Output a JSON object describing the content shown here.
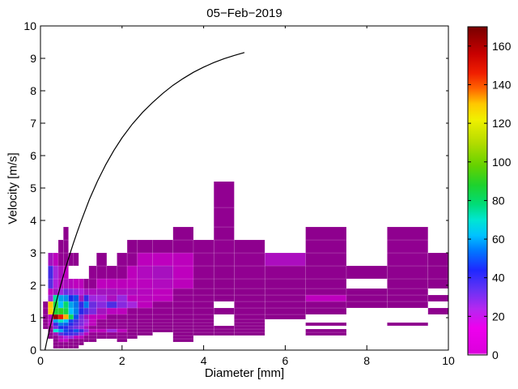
{
  "chart_data": {
    "type": "heatmap",
    "title": "05−Feb−2019",
    "xlabel": "Diameter [mm]",
    "ylabel": "Velocity [m/s]",
    "xlim": [
      0,
      10
    ],
    "ylim": [
      0,
      10
    ],
    "x_tick_values": [
      0,
      2,
      4,
      6,
      8,
      10
    ],
    "x_tick_labels": [
      "0",
      "2",
      "4",
      "6",
      "8",
      "10"
    ],
    "y_tick_values": [
      0,
      1,
      2,
      3,
      4,
      5,
      6,
      7,
      8,
      9,
      10
    ],
    "y_tick_labels": [
      "0",
      "1",
      "2",
      "3",
      "4",
      "5",
      "6",
      "7",
      "8",
      "9",
      "10"
    ],
    "grid": false,
    "background": "#ffffff",
    "diameter_bin_edges_mm": [
      0.062,
      0.187,
      0.312,
      0.437,
      0.562,
      0.687,
      0.812,
      0.937,
      1.062,
      1.187,
      1.375,
      1.625,
      1.875,
      2.125,
      2.375,
      2.75,
      3.25,
      3.75,
      4.25,
      4.75,
      5.5,
      6.5,
      7.5,
      8.5,
      9.5,
      10.0
    ],
    "velocity_bin_edges_ms": [
      0.05,
      0.15,
      0.25,
      0.35,
      0.45,
      0.55,
      0.65,
      0.75,
      0.85,
      0.95,
      1.1,
      1.3,
      1.5,
      1.7,
      1.9,
      2.2,
      2.6,
      3.0,
      3.4,
      3.8,
      4.4,
      5.2
    ],
    "counts": [
      [
        0,
        0,
        3,
        5,
        4,
        3,
        3,
        0,
        0,
        0,
        0,
        0,
        0,
        0,
        0,
        0,
        0,
        0,
        0,
        0,
        0,
        0,
        0,
        0,
        0
      ],
      [
        0,
        0,
        4,
        6,
        5,
        4,
        3,
        3,
        0,
        0,
        0,
        0,
        0,
        0,
        0,
        0,
        0,
        0,
        0,
        0,
        0,
        0,
        0,
        0,
        0
      ],
      [
        0,
        0,
        5,
        12,
        14,
        8,
        6,
        5,
        4,
        3,
        0,
        0,
        4,
        0,
        0,
        0,
        2,
        0,
        0,
        0,
        0,
        0,
        0,
        0,
        0
      ],
      [
        0,
        4,
        8,
        18,
        22,
        26,
        15,
        12,
        8,
        5,
        4,
        4,
        8,
        2,
        0,
        0,
        3,
        0,
        0,
        0,
        0,
        0,
        0,
        0,
        0
      ],
      [
        0,
        6,
        20,
        35,
        40,
        38,
        36,
        28,
        15,
        10,
        8,
        8,
        10,
        3,
        2,
        0,
        2,
        2,
        2,
        2,
        0,
        3,
        0,
        0,
        0
      ],
      [
        0,
        8,
        70,
        60,
        48,
        42,
        50,
        40,
        28,
        15,
        12,
        25,
        12,
        4,
        3,
        2,
        3,
        3,
        2,
        3,
        0,
        4,
        0,
        0,
        0
      ],
      [
        4,
        10,
        30,
        45,
        42,
        35,
        30,
        25,
        18,
        10,
        8,
        8,
        10,
        6,
        4,
        3,
        4,
        3,
        3,
        3,
        0,
        0,
        0,
        0,
        0
      ],
      [
        6,
        14,
        40,
        55,
        52,
        42,
        35,
        30,
        22,
        12,
        8,
        8,
        9,
        6,
        5,
        4,
        4,
        4,
        0,
        4,
        0,
        5,
        0,
        5,
        0
      ],
      [
        8,
        16,
        60,
        72,
        62,
        48,
        38,
        30,
        25,
        14,
        10,
        8,
        9,
        7,
        6,
        5,
        5,
        4,
        0,
        4,
        0,
        0,
        0,
        0,
        0
      ],
      [
        10,
        15,
        165,
        148,
        132,
        82,
        50,
        30,
        20,
        14,
        11,
        9,
        10,
        8,
        8,
        6,
        5,
        5,
        0,
        5,
        4,
        0,
        0,
        0,
        0
      ],
      [
        8,
        128,
        88,
        90,
        85,
        62,
        56,
        42,
        36,
        30,
        20,
        15,
        12,
        10,
        10,
        8,
        6,
        5,
        4,
        5,
        4,
        4,
        0,
        0,
        5
      ],
      [
        5,
        130,
        85,
        62,
        80,
        60,
        55,
        40,
        55,
        32,
        28,
        36,
        28,
        24,
        12,
        10,
        8,
        6,
        0,
        5,
        5,
        5,
        4,
        4,
        0
      ],
      [
        0,
        25,
        75,
        60,
        58,
        45,
        50,
        20,
        40,
        25,
        24,
        18,
        26,
        14,
        15,
        13,
        10,
        6,
        4,
        5,
        5,
        13,
        5,
        5,
        5
      ],
      [
        0,
        14,
        20,
        25,
        32,
        28,
        26,
        22,
        20,
        18,
        20,
        20,
        18,
        18,
        16,
        14,
        10,
        5,
        4,
        4,
        5,
        6,
        4,
        5,
        0
      ],
      [
        0,
        35,
        22,
        16,
        18,
        16,
        14,
        11,
        9,
        9,
        13,
        11,
        11,
        13,
        15,
        17,
        11,
        6,
        5,
        6,
        5,
        5,
        0,
        5,
        5
      ],
      [
        0,
        38,
        24,
        18,
        14,
        0,
        0,
        0,
        0,
        8,
        8,
        8,
        10,
        12,
        17,
        19,
        13,
        8,
        6,
        8,
        8,
        6,
        5,
        6,
        5
      ],
      [
        0,
        20,
        14,
        10,
        8,
        6,
        5,
        0,
        0,
        0,
        5,
        0,
        8,
        10,
        12,
        14,
        12,
        10,
        8,
        10,
        18,
        6,
        0,
        8,
        4
      ],
      [
        0,
        0,
        0,
        5,
        6,
        0,
        0,
        0,
        0,
        0,
        0,
        0,
        0,
        4,
        5,
        5,
        6,
        6,
        8,
        5,
        0,
        6,
        0,
        8,
        0
      ],
      [
        0,
        0,
        0,
        0,
        5,
        0,
        0,
        0,
        0,
        0,
        0,
        0,
        0,
        0,
        0,
        0,
        5,
        0,
        6,
        0,
        0,
        5,
        0,
        6,
        0
      ],
      [
        0,
        0,
        0,
        0,
        0,
        0,
        0,
        0,
        0,
        0,
        0,
        0,
        0,
        0,
        0,
        0,
        0,
        0,
        8,
        0,
        0,
        0,
        0,
        0,
        0
      ],
      [
        0,
        0,
        0,
        0,
        0,
        0,
        0,
        0,
        0,
        0,
        0,
        0,
        0,
        0,
        0,
        0,
        0,
        0,
        8,
        0,
        0,
        0,
        0,
        0,
        0
      ]
    ],
    "fall_speed_curve": {
      "color": "#000000",
      "points": [
        [
          0.11,
          0.0
        ],
        [
          0.15,
          0.24
        ],
        [
          0.2,
          0.52
        ],
        [
          0.3,
          1.05
        ],
        [
          0.4,
          1.55
        ],
        [
          0.5,
          2.02
        ],
        [
          0.6,
          2.47
        ],
        [
          0.7,
          2.88
        ],
        [
          0.8,
          3.27
        ],
        [
          0.9,
          3.64
        ],
        [
          1.0,
          3.99
        ],
        [
          1.2,
          4.65
        ],
        [
          1.4,
          5.22
        ],
        [
          1.6,
          5.72
        ],
        [
          1.8,
          6.16
        ],
        [
          2.0,
          6.55
        ],
        [
          2.25,
          6.97
        ],
        [
          2.5,
          7.33
        ],
        [
          2.75,
          7.64
        ],
        [
          3.0,
          7.92
        ],
        [
          3.25,
          8.17
        ],
        [
          3.5,
          8.38
        ],
        [
          3.75,
          8.57
        ],
        [
          4.0,
          8.73
        ],
        [
          4.25,
          8.87
        ],
        [
          4.5,
          8.99
        ],
        [
          4.75,
          9.09
        ],
        [
          5.0,
          9.18
        ]
      ]
    },
    "colorbar": {
      "position": "right",
      "vmin": 0,
      "vmax": 170,
      "tick_values": [
        0,
        20,
        40,
        60,
        80,
        100,
        120,
        140,
        160
      ],
      "tick_labels": [
        "0",
        "20",
        "40",
        "60",
        "80",
        "100",
        "120",
        "140",
        "160"
      ],
      "colormap_stops": [
        [
          0,
          "#ffffff"
        ],
        [
          1,
          "#dc00dc"
        ],
        [
          14,
          "#ee00ee"
        ],
        [
          24,
          "#b428f0"
        ],
        [
          34,
          "#6432f5"
        ],
        [
          44,
          "#1e28ff"
        ],
        [
          54,
          "#0078ff"
        ],
        [
          62,
          "#00c3ff"
        ],
        [
          70,
          "#00e6d2"
        ],
        [
          78,
          "#00dc78"
        ],
        [
          88,
          "#1ed22d"
        ],
        [
          98,
          "#64d200"
        ],
        [
          110,
          "#b4dc00"
        ],
        [
          122,
          "#f0f000"
        ],
        [
          130,
          "#ffc800"
        ],
        [
          138,
          "#ff6400"
        ],
        [
          146,
          "#f01e00"
        ],
        [
          156,
          "#c80000"
        ],
        [
          170,
          "#780000"
        ]
      ]
    }
  }
}
